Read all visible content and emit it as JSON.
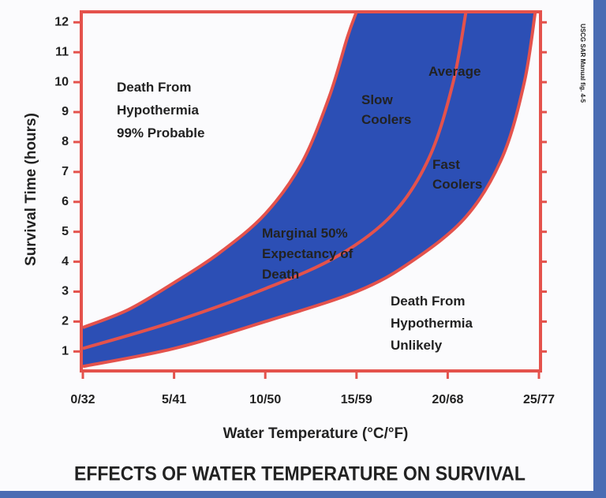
{
  "chart_data": {
    "type": "line",
    "title": "EFFECTS OF WATER TEMPERATURE ON SURVIVAL",
    "xlabel": "Water Temperature (°C/°F)",
    "ylabel": "Survival Time (hours)",
    "source": "USCG SAR Manual fig. 4-5",
    "annotations": [
      [
        "Death From",
        "Hypothermia",
        "99% Probable"
      ],
      [
        "Marginal 50%",
        "Expectancy of",
        "Death"
      ],
      [
        "Death From",
        "Hypothermia",
        "Unlikely"
      ]
    ],
    "band_color": "#2c4fb5",
    "series": [
      {
        "name": "Slow Coolers",
        "color": "#e4524c",
        "x": [
          0,
          2.5,
          5,
          7.5,
          10,
          12,
          13.5,
          14.5,
          15
        ],
        "values": [
          1.8,
          2.4,
          3.3,
          4.3,
          5.6,
          7.3,
          9.5,
          11.5,
          12.35
        ]
      },
      {
        "name": "Average",
        "color": "#e4524c",
        "x": [
          0,
          5,
          10,
          14,
          17,
          19,
          20.3,
          21
        ],
        "values": [
          1.1,
          2.0,
          3.1,
          4.2,
          5.6,
          7.5,
          10,
          12.35
        ]
      },
      {
        "name": "Fast Coolers",
        "color": "#e4524c",
        "x": [
          0,
          5,
          10,
          15,
          18,
          21,
          23,
          24.2,
          24.8
        ],
        "values": [
          0.5,
          1.1,
          2.0,
          3.0,
          4.0,
          5.5,
          7.5,
          10,
          12.35
        ]
      }
    ],
    "xlim": [
      0,
      25
    ],
    "xticks": [
      {
        "value": 0,
        "label": "0/32"
      },
      {
        "value": 5,
        "label": "5/41"
      },
      {
        "value": 10,
        "label": "10/50"
      },
      {
        "value": 15,
        "label": "15/59"
      },
      {
        "value": 20,
        "label": "20/68"
      },
      {
        "value": 25,
        "label": "25/77"
      }
    ],
    "ylim": [
      0.35,
      12.35
    ],
    "yticks": [
      1,
      2,
      3,
      4,
      5,
      6,
      7,
      8,
      9,
      10,
      11,
      12
    ]
  }
}
